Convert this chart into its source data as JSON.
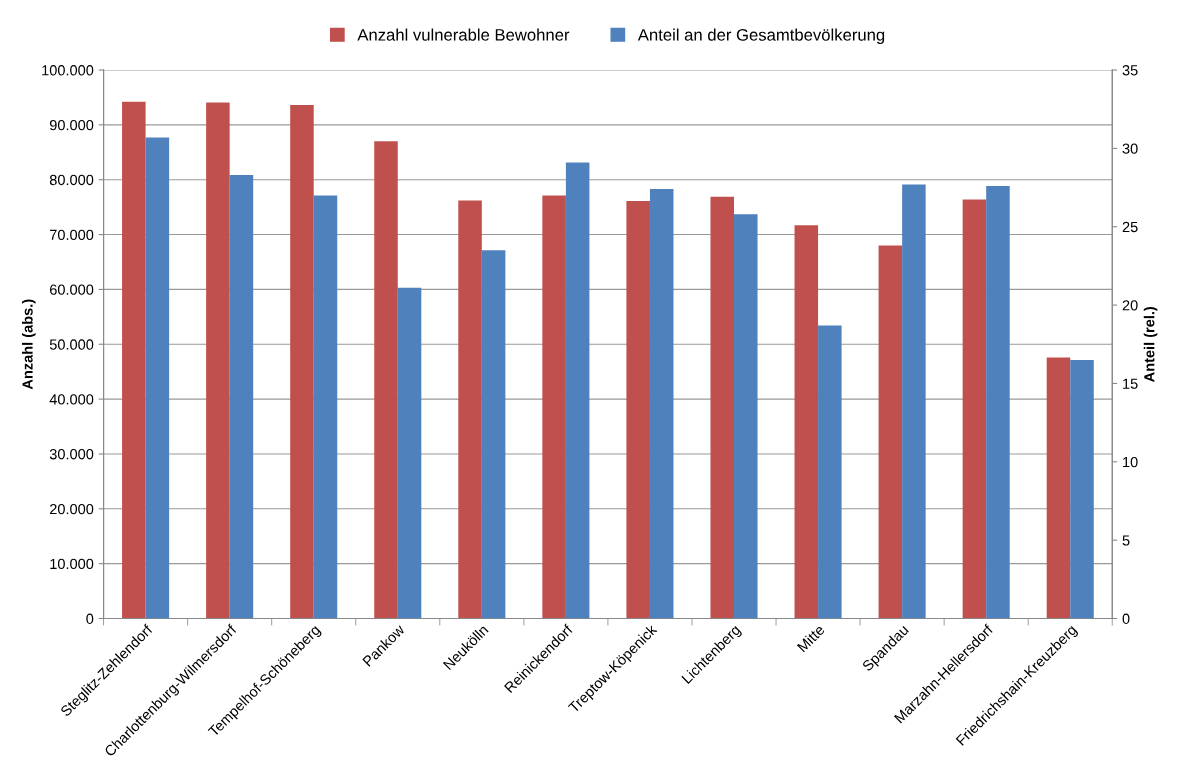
{
  "chart_data": {
    "type": "bar",
    "categories": [
      "Steglitz-Zehlendorf",
      "Charlottenburg-Wilmersdorf",
      "Tempelhof-Schöneberg",
      "Pankow",
      "Neukölln",
      "Reinickendorf",
      "Treptow-Köpenick",
      "Lichtenberg",
      "Mitte",
      "Spandau",
      "Marzahn-Hellersdorf",
      "Friedrichshain-Kreuzberg"
    ],
    "series": [
      {
        "name": "Anzahl vulnerable Bewohner",
        "color": "#c0504d",
        "values": [
          94200,
          94100,
          93600,
          87000,
          76200,
          77100,
          76100,
          76900,
          71700,
          68000,
          76400,
          47600
        ]
      },
      {
        "name": "Anteil an der Gesamtbevölkerung",
        "color": "#4f81bd",
        "axis": "y2",
        "values": [
          30.7,
          28.3,
          27.0,
          21.1,
          23.5,
          29.1,
          27.4,
          25.8,
          18.7,
          27.7,
          27.6,
          16.5
        ]
      }
    ],
    "ylabel": "Anzahl (abs.)",
    "y2label": "Anteil (rel.)",
    "ylim": [
      0,
      100000
    ],
    "yticks": [
      0,
      {
        "value": 10000,
        "label": "10.000"
      },
      {
        "value": 20000,
        "label": "20.000"
      },
      {
        "value": 30000,
        "label": "30.000"
      },
      {
        "value": 40000,
        "label": "40.000"
      },
      {
        "value": 50000,
        "label": "50.000"
      },
      {
        "value": 60000,
        "label": "60.000"
      },
      {
        "value": 70000,
        "label": "70.000"
      },
      {
        "value": 80000,
        "label": "80.000"
      },
      {
        "value": 90000,
        "label": "90.000"
      },
      {
        "value": 100000,
        "label": "100.000"
      }
    ],
    "y2lim": [
      0,
      35
    ],
    "y2ticks": [
      0,
      5,
      10,
      15,
      20,
      25,
      30,
      35
    ],
    "grid": "y",
    "legend": "top"
  }
}
